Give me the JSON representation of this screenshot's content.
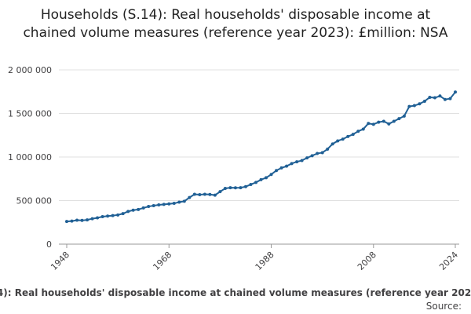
{
  "chart_data": {
    "type": "line",
    "title": "Households (S.14): Real households' disposable income at chained volume measures (reference year 2023): £million: NSA",
    "source": "Source:",
    "x": [
      1948,
      1949,
      1950,
      1951,
      1952,
      1953,
      1954,
      1955,
      1956,
      1957,
      1958,
      1959,
      1960,
      1961,
      1962,
      1963,
      1964,
      1965,
      1966,
      1967,
      1968,
      1969,
      1970,
      1971,
      1972,
      1973,
      1974,
      1975,
      1976,
      1977,
      1978,
      1979,
      1980,
      1981,
      1982,
      1983,
      1984,
      1985,
      1986,
      1987,
      1988,
      1989,
      1990,
      1991,
      1992,
      1993,
      1994,
      1995,
      1996,
      1997,
      1998,
      1999,
      2000,
      2001,
      2002,
      2003,
      2004,
      2005,
      2006,
      2007,
      2008,
      2009,
      2010,
      2011,
      2012,
      2013,
      2014,
      2015,
      2016,
      2017,
      2018,
      2019,
      2020,
      2021,
      2022,
      2023,
      2024
    ],
    "series": [
      {
        "name": "Households (S.14): Real households' disposable income at chained volume measures (reference year 2023): £million: NSA",
        "color": "#206095",
        "values": [
          260000,
          265000,
          275000,
          272000,
          278000,
          292000,
          302000,
          315000,
          322000,
          328000,
          335000,
          350000,
          375000,
          390000,
          398000,
          415000,
          432000,
          442000,
          450000,
          456000,
          462000,
          468000,
          482000,
          492000,
          535000,
          572000,
          568000,
          572000,
          570000,
          562000,
          602000,
          640000,
          648000,
          646000,
          648000,
          660000,
          685000,
          708000,
          740000,
          762000,
          800000,
          845000,
          875000,
          895000,
          925000,
          945000,
          960000,
          990000,
          1015000,
          1040000,
          1050000,
          1090000,
          1150000,
          1185000,
          1205000,
          1235000,
          1260000,
          1295000,
          1320000,
          1385000,
          1375000,
          1400000,
          1410000,
          1380000,
          1410000,
          1440000,
          1470000,
          1580000,
          1590000,
          1610000,
          1640000,
          1685000,
          1680000,
          1700000,
          1660000,
          1670000,
          1745000
        ]
      }
    ],
    "xlim": [
      1948,
      2024
    ],
    "xticks": [
      1948,
      1968,
      1988,
      2008,
      2024
    ],
    "ylim": [
      0,
      2000000
    ],
    "yticks": [
      0,
      {
        "value": 500000,
        "label": "500 000"
      },
      {
        "value": 1000000,
        "label": "1 000 000"
      },
      {
        "value": 1500000,
        "label": "1 500 000"
      },
      {
        "value": 2000000,
        "label": "2 000 000"
      }
    ],
    "grid": true
  }
}
